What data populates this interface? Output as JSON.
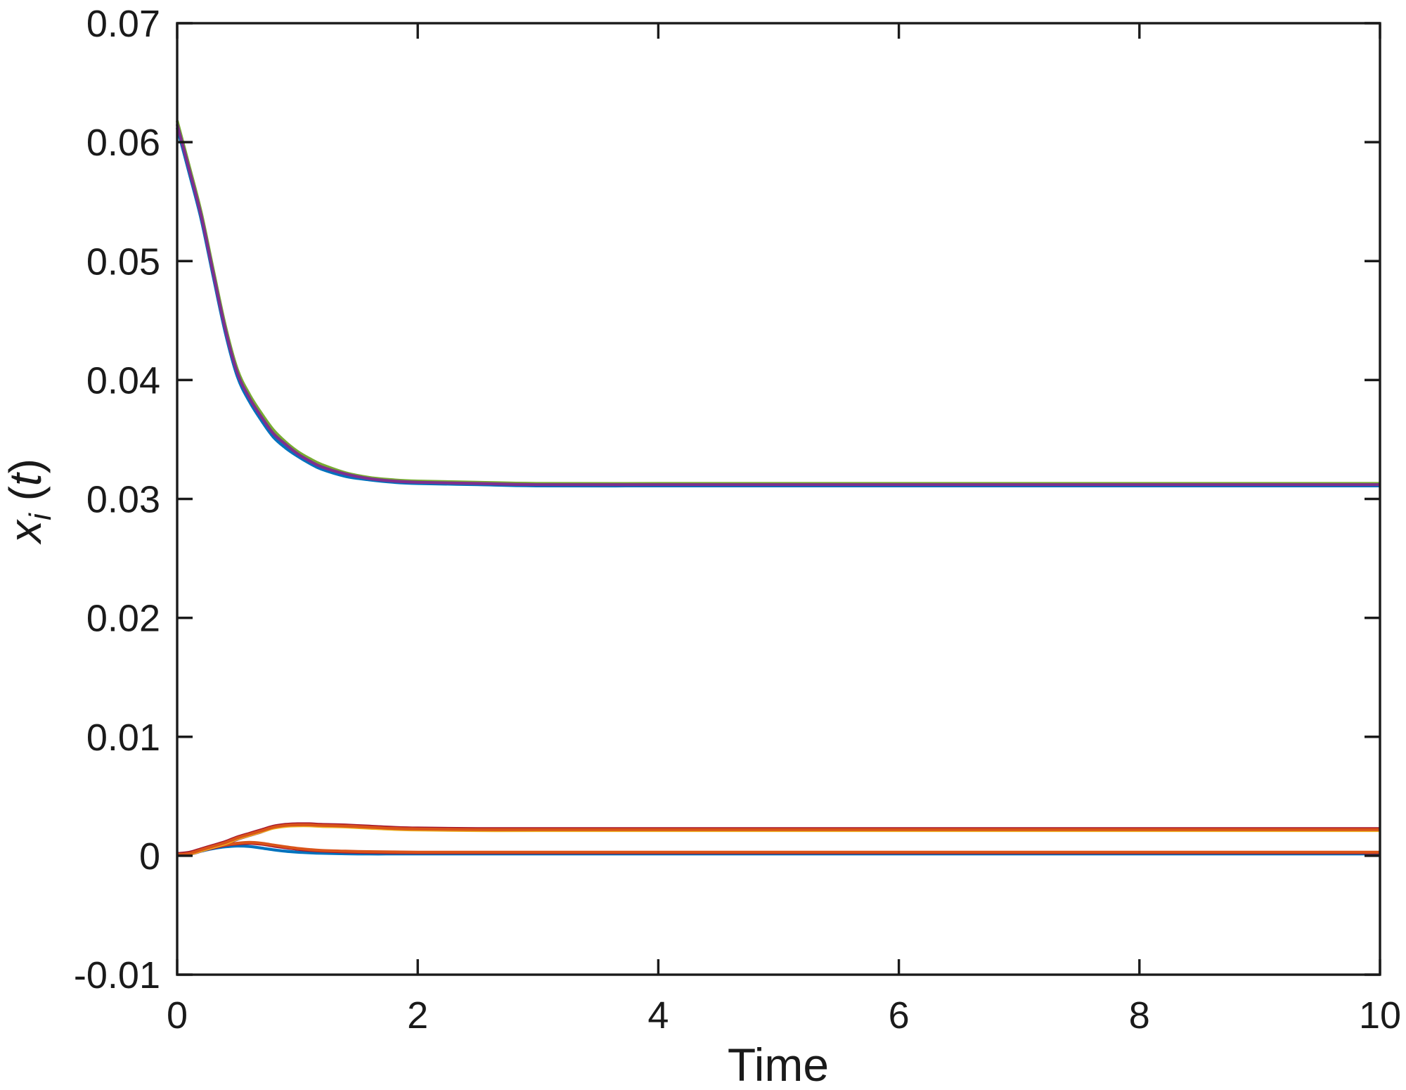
{
  "chart_data": {
    "type": "line",
    "title": "",
    "xlabel": "Time",
    "ylabel": "x_i(t)",
    "ylabel_parts": {
      "variable": "x",
      "subscript": "i",
      "open_paren": " (",
      "time_variable": "t",
      "close_paren": ")"
    },
    "xlim": [
      0,
      10
    ],
    "ylim": [
      -0.01,
      0.07
    ],
    "xticks": [
      0,
      2,
      4,
      6,
      8,
      10
    ],
    "xtick_labels": [
      "0",
      "2",
      "4",
      "6",
      "8",
      "10"
    ],
    "yticks": [
      -0.01,
      0,
      0.01,
      0.02,
      0.03,
      0.04,
      0.05,
      0.06,
      0.07
    ],
    "ytick_labels": [
      "-0.01",
      "0",
      "0.01",
      "0.02",
      "0.03",
      "0.04",
      "0.05",
      "0.06",
      "0.07"
    ],
    "grid": false,
    "legend": "none",
    "box": true,
    "axis_color": "#1a1a1a",
    "background": "#ffffff",
    "x": [
      0,
      0.1,
      0.2,
      0.3,
      0.4,
      0.5,
      0.6,
      0.7,
      0.8,
      0.9,
      1,
      1.1,
      1.2,
      1.4,
      1.6,
      1.8,
      2,
      2.5,
      3,
      4,
      5,
      6,
      7,
      8,
      9,
      10
    ],
    "series": [
      {
        "name": "upper-trajectory-green",
        "color": "#77AC30",
        "values": [
          0.0618,
          0.058,
          0.0541,
          0.0493,
          0.0446,
          0.0409,
          0.0388,
          0.0372,
          0.0358,
          0.0348,
          0.034,
          0.0334,
          0.0329,
          0.0322,
          0.0318,
          0.0316,
          0.0315,
          0.0314,
          0.0313,
          0.0313,
          0.0313,
          0.0313,
          0.0313,
          0.0313,
          0.0313,
          0.0313
        ]
      },
      {
        "name": "upper-trajectory-blue",
        "color": "#0072BD",
        "values": [
          0.0612,
          0.0574,
          0.0535,
          0.0487,
          0.044,
          0.0403,
          0.0382,
          0.0366,
          0.0352,
          0.0343,
          0.0336,
          0.033,
          0.0325,
          0.0319,
          0.0316,
          0.0314,
          0.0313,
          0.0312,
          0.0311,
          0.0311,
          0.0311,
          0.0311,
          0.0311,
          0.0311,
          0.0311,
          0.0311
        ]
      },
      {
        "name": "upper-trajectory-purple",
        "color": "#7E2F8E",
        "values": [
          0.0615,
          0.0577,
          0.0538,
          0.049,
          0.0443,
          0.0406,
          0.0385,
          0.0369,
          0.0355,
          0.0346,
          0.0338,
          0.0332,
          0.0327,
          0.0321,
          0.0317,
          0.0315,
          0.0314,
          0.0313,
          0.0312,
          0.0312,
          0.0312,
          0.0312,
          0.0312,
          0.0312,
          0.0312,
          0.0312
        ]
      },
      {
        "name": "lower-trajectory-purple",
        "color": "#7E2F8E",
        "values": [
          0.0001,
          0.00012,
          0.00038,
          0.00068,
          0.00098,
          0.00138,
          0.0017,
          0.002,
          0.00235,
          0.00252,
          0.00257,
          0.00257,
          0.00252,
          0.00247,
          0.00237,
          0.00227,
          0.00222,
          0.00217,
          0.00217,
          0.00217,
          0.00217,
          0.00217,
          0.00217,
          0.00217,
          0.00217,
          0.00217
        ]
      },
      {
        "name": "lower-trajectory-blue-bump",
        "color": "#0072BD",
        "values": [
          0.0001,
          0.0002,
          0.0004,
          0.0006,
          0.00075,
          0.00082,
          0.00078,
          0.00065,
          0.0005,
          0.00038,
          0.0003,
          0.00025,
          0.00021,
          0.00017,
          0.00015,
          0.00015,
          0.00015,
          0.00015,
          0.00015,
          0.00015,
          0.00015,
          0.00015,
          0.00015,
          0.00015,
          0.00015,
          0.00015
        ]
      },
      {
        "name": "lower-trajectory-maroon-bump",
        "color": "#A2142F",
        "values": [
          0.0001,
          0.0002,
          0.00042,
          0.00066,
          0.00088,
          0.001,
          0.00105,
          0.00098,
          0.00082,
          0.00068,
          0.00055,
          0.00046,
          0.0004,
          0.00032,
          0.00028,
          0.00026,
          0.00025,
          0.00025,
          0.00025,
          0.00025,
          0.00025,
          0.00025,
          0.00025,
          0.00025,
          0.00025,
          0.00025
        ]
      },
      {
        "name": "lower-trajectory-orange-bump",
        "color": "#D95319",
        "values": [
          0.0001,
          0.00022,
          0.00045,
          0.0007,
          0.00092,
          0.00105,
          0.00112,
          0.00105,
          0.0009,
          0.00075,
          0.00062,
          0.00052,
          0.00045,
          0.00038,
          0.00034,
          0.00032,
          0.0003,
          0.0003,
          0.0003,
          0.0003,
          0.0003,
          0.0003,
          0.0003,
          0.0003,
          0.0003,
          0.0003
        ]
      },
      {
        "name": "lower-trajectory-yellow",
        "color": "#EDB120",
        "values": [
          2e-05,
          0.00012,
          0.00042,
          0.00072,
          0.00102,
          0.00142,
          0.00172,
          0.00202,
          0.00232,
          0.00247,
          0.00252,
          0.00252,
          0.00247,
          0.00242,
          0.00232,
          0.00222,
          0.00217,
          0.00212,
          0.00212,
          0.00212,
          0.00212,
          0.00212,
          0.00212,
          0.00212,
          0.00212,
          0.00212
        ]
      },
      {
        "name": "lower-trajectory-maroon",
        "color": "#A2142F",
        "values": [
          0.00018,
          0.00028,
          0.00058,
          0.00088,
          0.00118,
          0.00158,
          0.00188,
          0.00218,
          0.00248,
          0.00263,
          0.00268,
          0.00268,
          0.00263,
          0.00258,
          0.00248,
          0.00238,
          0.00233,
          0.00228,
          0.00228,
          0.00228,
          0.00228,
          0.00228,
          0.00228,
          0.00228,
          0.00228,
          0.00228
        ]
      },
      {
        "name": "lower-trajectory-orange",
        "color": "#D95319",
        "values": [
          0.0001,
          0.0002,
          0.0005,
          0.0008,
          0.0011,
          0.0015,
          0.0018,
          0.0021,
          0.0024,
          0.00255,
          0.0026,
          0.0026,
          0.00255,
          0.0025,
          0.0024,
          0.0023,
          0.00225,
          0.0022,
          0.0022,
          0.0022,
          0.0022,
          0.0022,
          0.0022,
          0.0022,
          0.0022,
          0.0022
        ]
      }
    ]
  }
}
